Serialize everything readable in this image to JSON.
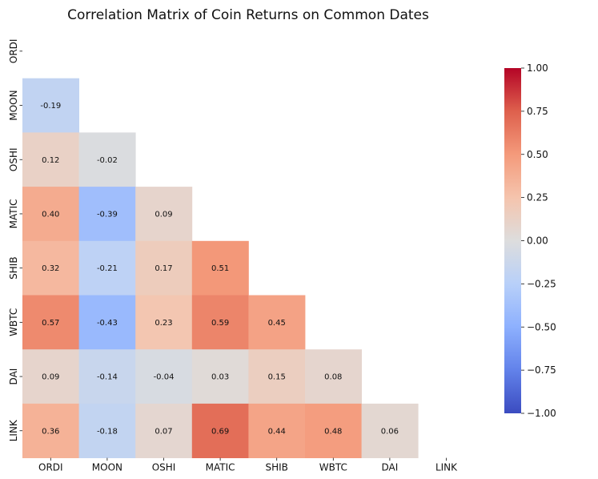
{
  "chart_data": {
    "type": "heatmap",
    "title": "Correlation Matrix of Coin Returns on Common Dates",
    "labels": [
      "ORDI",
      "MOON",
      "OSHI",
      "MATIC",
      "SHIB",
      "WBTC",
      "DAI",
      "LINK"
    ],
    "mask": "upper-triangle-including-diagonal",
    "lower_triangle_values": [
      [],
      [
        -0.19
      ],
      [
        0.12,
        -0.02
      ],
      [
        0.4,
        -0.39,
        0.09
      ],
      [
        0.32,
        -0.21,
        0.17,
        0.51
      ],
      [
        0.57,
        -0.43,
        0.23,
        0.59,
        0.45
      ],
      [
        0.09,
        -0.14,
        -0.04,
        0.03,
        0.15,
        0.08
      ],
      [
        0.36,
        -0.18,
        0.07,
        0.69,
        0.44,
        0.48,
        0.06
      ]
    ],
    "value_format": "0.00",
    "colormap": "coolwarm",
    "color_range": [
      -1.0,
      1.0
    ],
    "colorbar_ticks": [
      "1.00",
      "0.75",
      "0.50",
      "0.25",
      "0.00",
      "−0.25",
      "−0.50",
      "−0.75",
      "−1.00"
    ],
    "colorbar_tick_values": [
      1.0,
      0.75,
      0.5,
      0.25,
      0.0,
      -0.25,
      -0.5,
      -0.75,
      -1.0
    ]
  }
}
